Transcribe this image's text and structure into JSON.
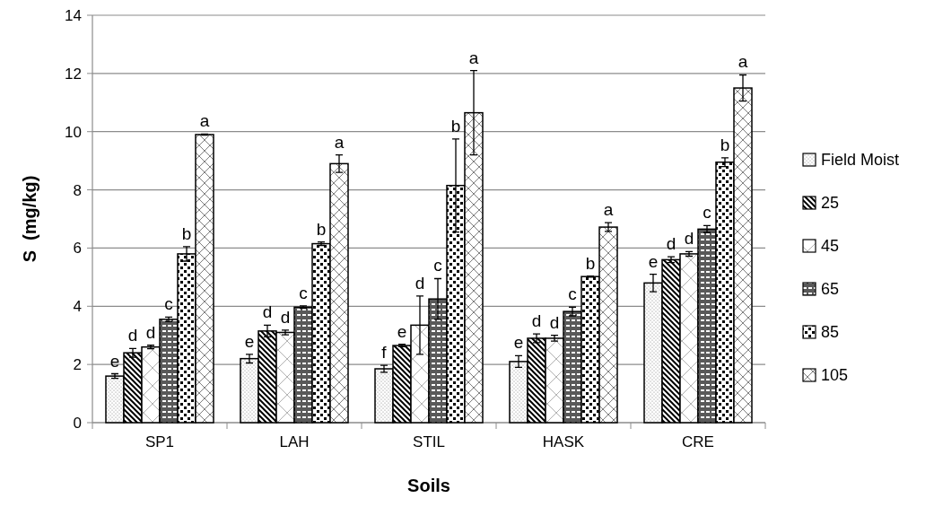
{
  "chart_data": {
    "type": "bar",
    "xlabel": "Soils",
    "ylabel": "S  (mg/kg)",
    "categories": [
      "SP1",
      "LAH",
      "STIL",
      "HASK",
      "CRE"
    ],
    "series": [
      {
        "name": "Field Moist",
        "color": "#000000",
        "values": [
          1.6,
          2.2,
          1.85,
          2.1,
          4.8
        ],
        "errors": [
          0.08,
          0.15,
          0.12,
          0.2,
          0.3
        ],
        "value_labels": [
          "e",
          "e",
          "f",
          "e",
          "e"
        ]
      },
      {
        "name": "25",
        "color": "#000000",
        "values": [
          2.4,
          3.15,
          2.65,
          2.9,
          5.6
        ],
        "errors": [
          0.15,
          0.2,
          0.04,
          0.15,
          0.1
        ],
        "value_labels": [
          "d",
          "d",
          "e",
          "d",
          "d"
        ]
      },
      {
        "name": "45",
        "color": "#000000",
        "values": [
          2.6,
          3.1,
          3.35,
          2.9,
          5.8
        ],
        "errors": [
          0.06,
          0.08,
          1.0,
          0.1,
          0.08
        ],
        "value_labels": [
          "d",
          "d",
          "d",
          "d",
          "d"
        ]
      },
      {
        "name": "65",
        "color": "#000000",
        "values": [
          3.55,
          3.97,
          4.25,
          3.82,
          6.65
        ],
        "errors": [
          0.08,
          0.04,
          0.7,
          0.15,
          0.12
        ],
        "value_labels": [
          "c",
          "c",
          "c",
          "c",
          "c"
        ]
      },
      {
        "name": "85",
        "color": "#000000",
        "values": [
          5.8,
          6.15,
          8.15,
          5.02,
          8.95
        ],
        "errors": [
          0.25,
          0.06,
          1.6,
          0.02,
          0.15
        ],
        "value_labels": [
          "b",
          "b",
          "b",
          "b",
          "b"
        ]
      },
      {
        "name": "105",
        "color": "#000000",
        "values": [
          9.9,
          8.9,
          10.65,
          6.72,
          11.5
        ],
        "errors": [
          0.02,
          0.3,
          1.45,
          0.15,
          0.45
        ],
        "value_labels": [
          "a",
          "a",
          "a",
          "a",
          "a"
        ]
      }
    ],
    "ylim": [
      0,
      14
    ],
    "yticks": [
      0,
      2,
      4,
      6,
      8,
      10,
      12,
      14
    ],
    "grid": "y",
    "legend": "right"
  }
}
